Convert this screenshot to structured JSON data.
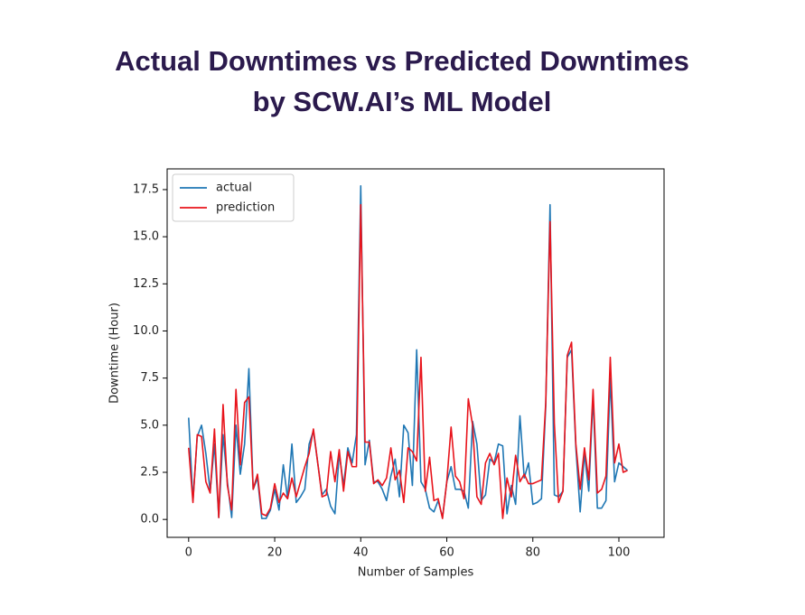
{
  "chart_data": {
    "type": "line",
    "title": [
      "Actual Downtimes vs Predicted Downtimes",
      "by SCW.AI’s ML Model"
    ],
    "x_label": "Number of Samples",
    "y_label": "Downtime (Hour)",
    "x": [
      0,
      1,
      2,
      3,
      4,
      5,
      6,
      7,
      8,
      9,
      10,
      11,
      12,
      13,
      14,
      15,
      16,
      17,
      18,
      19,
      20,
      21,
      22,
      23,
      24,
      25,
      26,
      27,
      28,
      29,
      30,
      31,
      32,
      33,
      34,
      35,
      36,
      37,
      38,
      39,
      40,
      41,
      42,
      43,
      44,
      45,
      46,
      47,
      48,
      49,
      50,
      51,
      52,
      53,
      54,
      55,
      56,
      57,
      58,
      59,
      60,
      61,
      62,
      63,
      64,
      65,
      66,
      67,
      68,
      69,
      70,
      71,
      72,
      73,
      74,
      75,
      76,
      77,
      78,
      79,
      80,
      81,
      82,
      83,
      84,
      85,
      86,
      87,
      88,
      89,
      90,
      91,
      92,
      93,
      94,
      95,
      96,
      97,
      98,
      99,
      100,
      101,
      102
    ],
    "series": [
      {
        "name": "actual",
        "color": "#1f77b4",
        "values": [
          5.4,
          1.0,
          4.4,
          5.0,
          3.5,
          1.5,
          4.0,
          0.1,
          4.5,
          2.0,
          0.1,
          5.0,
          2.4,
          4.0,
          8.0,
          1.6,
          2.2,
          0.05,
          0.05,
          0.5,
          1.6,
          0.5,
          2.9,
          1.1,
          4.0,
          0.9,
          1.2,
          1.6,
          4.0,
          4.7,
          3.0,
          1.3,
          1.6,
          0.7,
          0.3,
          3.5,
          1.8,
          3.8,
          3.0,
          4.5,
          17.7,
          2.9,
          4.2,
          2.0,
          2.0,
          1.6,
          1.0,
          2.3,
          3.2,
          1.2,
          5.0,
          4.6,
          1.8,
          9.0,
          2.0,
          1.6,
          0.6,
          0.4,
          1.0,
          0.1,
          2.0,
          2.8,
          1.6,
          1.6,
          1.5,
          0.6,
          5.2,
          4.0,
          1.0,
          1.3,
          3.2,
          3.0,
          4.0,
          3.9,
          0.3,
          1.8,
          0.8,
          5.5,
          2.2,
          3.0,
          0.8,
          0.9,
          1.1,
          6.0,
          16.7,
          1.3,
          1.2,
          1.5,
          8.6,
          9.0,
          3.8,
          0.4,
          3.5,
          1.5,
          6.5,
          0.6,
          0.6,
          1.0,
          7.5,
          2.0,
          3.0,
          2.8,
          2.6
        ]
      },
      {
        "name": "prediction",
        "color": "#e8141c",
        "values": [
          3.8,
          0.9,
          4.5,
          4.4,
          2.0,
          1.4,
          4.8,
          0.1,
          6.1,
          1.8,
          0.5,
          6.9,
          2.9,
          6.2,
          6.5,
          1.6,
          2.4,
          0.3,
          0.2,
          0.6,
          1.9,
          0.9,
          1.4,
          1.1,
          2.2,
          1.2,
          2.0,
          2.8,
          3.5,
          4.8,
          3.0,
          1.2,
          1.3,
          3.6,
          2.0,
          3.7,
          1.5,
          3.6,
          2.8,
          2.8,
          16.7,
          4.1,
          4.1,
          1.9,
          2.1,
          1.8,
          2.2,
          3.8,
          2.1,
          2.6,
          0.9,
          3.8,
          3.6,
          3.1,
          8.6,
          1.5,
          3.3,
          1.0,
          1.1,
          0.05,
          2.0,
          4.9,
          2.3,
          2.0,
          1.1,
          6.4,
          5.0,
          1.2,
          0.8,
          3.0,
          3.5,
          2.9,
          3.5,
          0.05,
          2.2,
          1.2,
          3.4,
          2.0,
          2.4,
          1.9,
          1.9,
          2.0,
          2.1,
          6.2,
          15.8,
          5.1,
          0.9,
          1.5,
          8.7,
          9.4,
          4.0,
          1.6,
          3.8,
          2.1,
          6.9,
          1.4,
          1.6,
          2.3,
          8.6,
          3.0,
          4.0,
          2.5,
          2.6
        ]
      }
    ],
    "xlim": [
      -5,
      110.5
    ],
    "xticks": [
      0,
      20,
      40,
      60,
      80,
      100
    ],
    "ylim": [
      -0.95,
      18.6
    ],
    "yticks": [
      {
        "value": 0,
        "label": "0.0"
      },
      2.5,
      {
        "value": 5,
        "label": "5.0"
      },
      7.5,
      {
        "value": 10,
        "label": "10.0"
      },
      12.5,
      {
        "value": 15,
        "label": "15.0"
      },
      17.5
    ],
    "grid": false,
    "legend": "upper-left"
  }
}
